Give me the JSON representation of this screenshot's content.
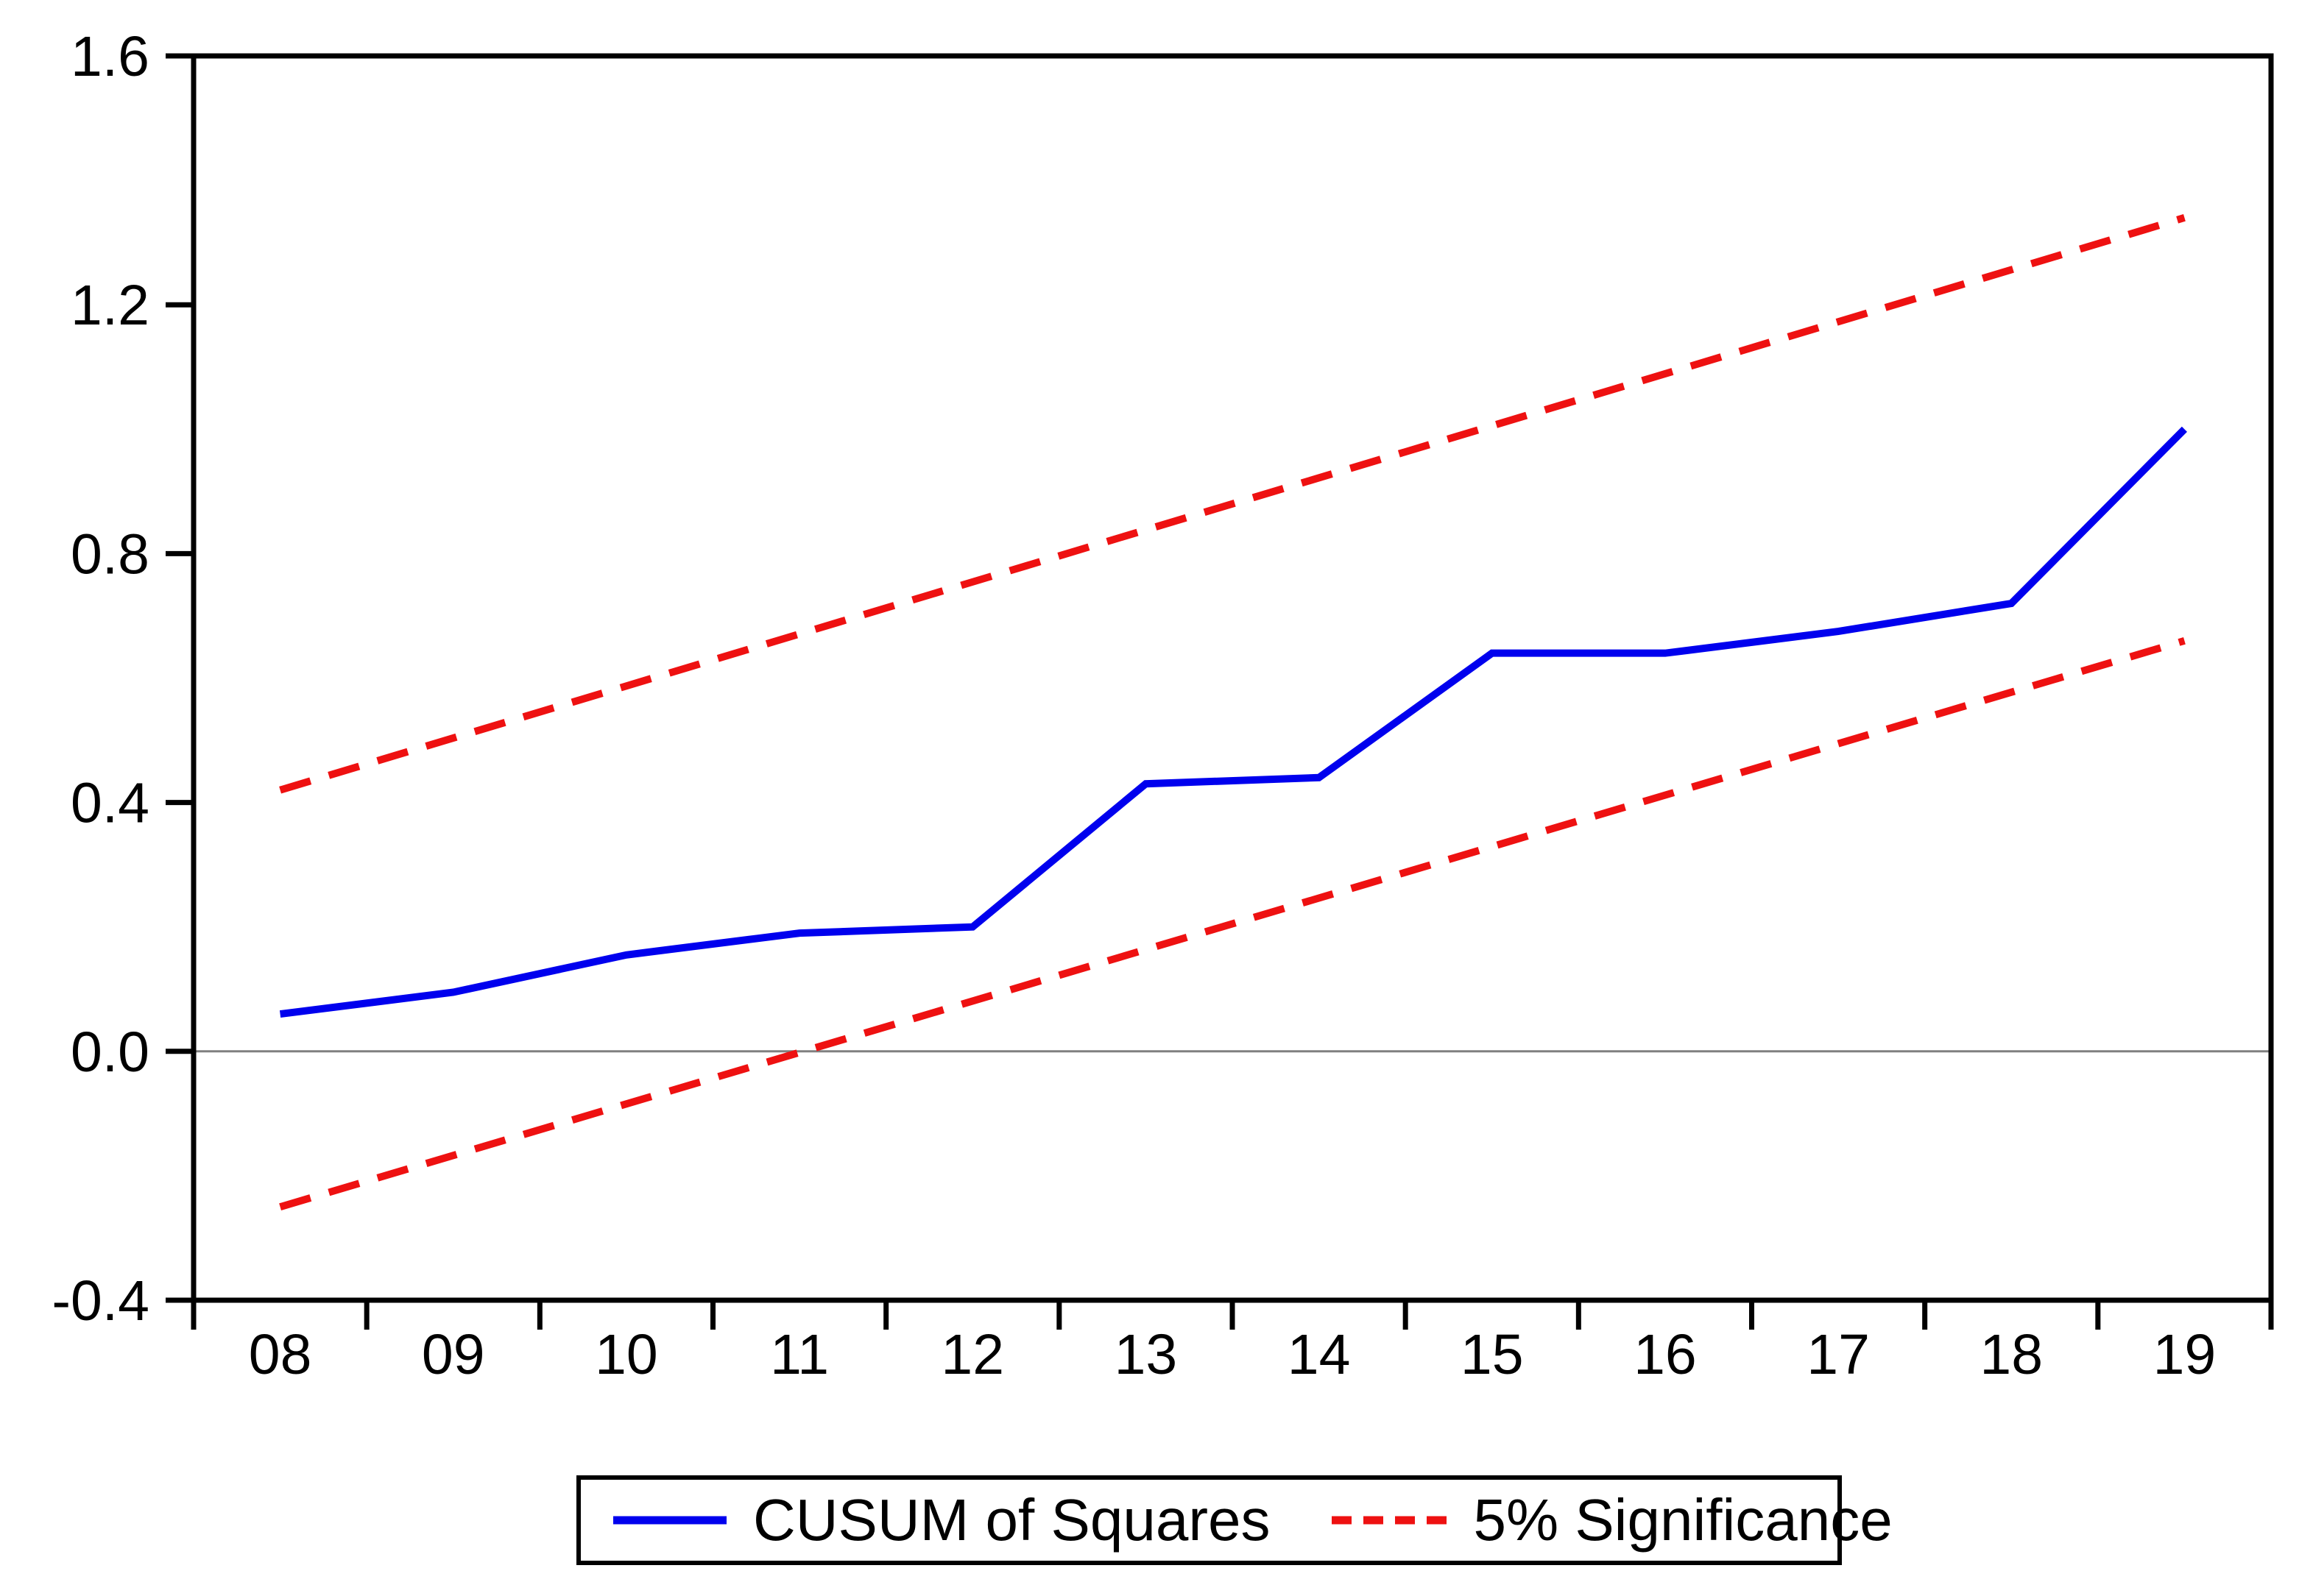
{
  "page": {
    "background": "#ffffff"
  },
  "legend": {
    "position": "bottom-center",
    "items": [
      {
        "label": "CUSUM of Squares",
        "swatch": "solid-line",
        "color": "#0000ee"
      },
      {
        "label": "5% Significance",
        "swatch": "dashed-line",
        "color": "#ee1111"
      }
    ]
  },
  "chart_data": {
    "type": "line",
    "title": "",
    "xlabel": "",
    "ylabel": "",
    "categories": [
      "08",
      "09",
      "10",
      "11",
      "12",
      "13",
      "14",
      "15",
      "16",
      "17",
      "18",
      "19"
    ],
    "ylim": [
      -0.4,
      1.6
    ],
    "y_ticks": [
      1.6,
      1.2,
      0.8,
      0.4,
      0.0,
      -0.4
    ],
    "y_tick_labels": [
      "1.6",
      "1.2",
      "0.8",
      "0.4",
      "0.0",
      "-0.4"
    ],
    "grid": false,
    "zero_line": true,
    "axis_color": "#000000",
    "legend_position": "bottom",
    "series": [
      {
        "name": "CUSUM of Squares",
        "style": "solid",
        "color": "#0000ee",
        "points": [
          [
            0,
            0.06
          ],
          [
            1,
            0.095
          ],
          [
            2,
            0.155
          ],
          [
            3,
            0.19
          ],
          [
            4,
            0.2
          ],
          [
            5,
            0.43
          ],
          [
            6,
            0.44
          ],
          [
            7,
            0.64
          ],
          [
            8,
            0.64
          ],
          [
            9,
            0.675
          ],
          [
            10,
            0.72
          ],
          [
            11,
            1.0
          ]
        ]
      },
      {
        "name": "5% Significance",
        "style": "dashed",
        "color": "#ee1111",
        "points": [
          [
            0,
            0.42
          ],
          [
            11,
            1.34
          ]
        ]
      },
      {
        "name": "5% Significance",
        "style": "dashed",
        "color": "#ee1111",
        "points": [
          [
            0,
            -0.25
          ],
          [
            11,
            0.66
          ]
        ]
      }
    ]
  }
}
